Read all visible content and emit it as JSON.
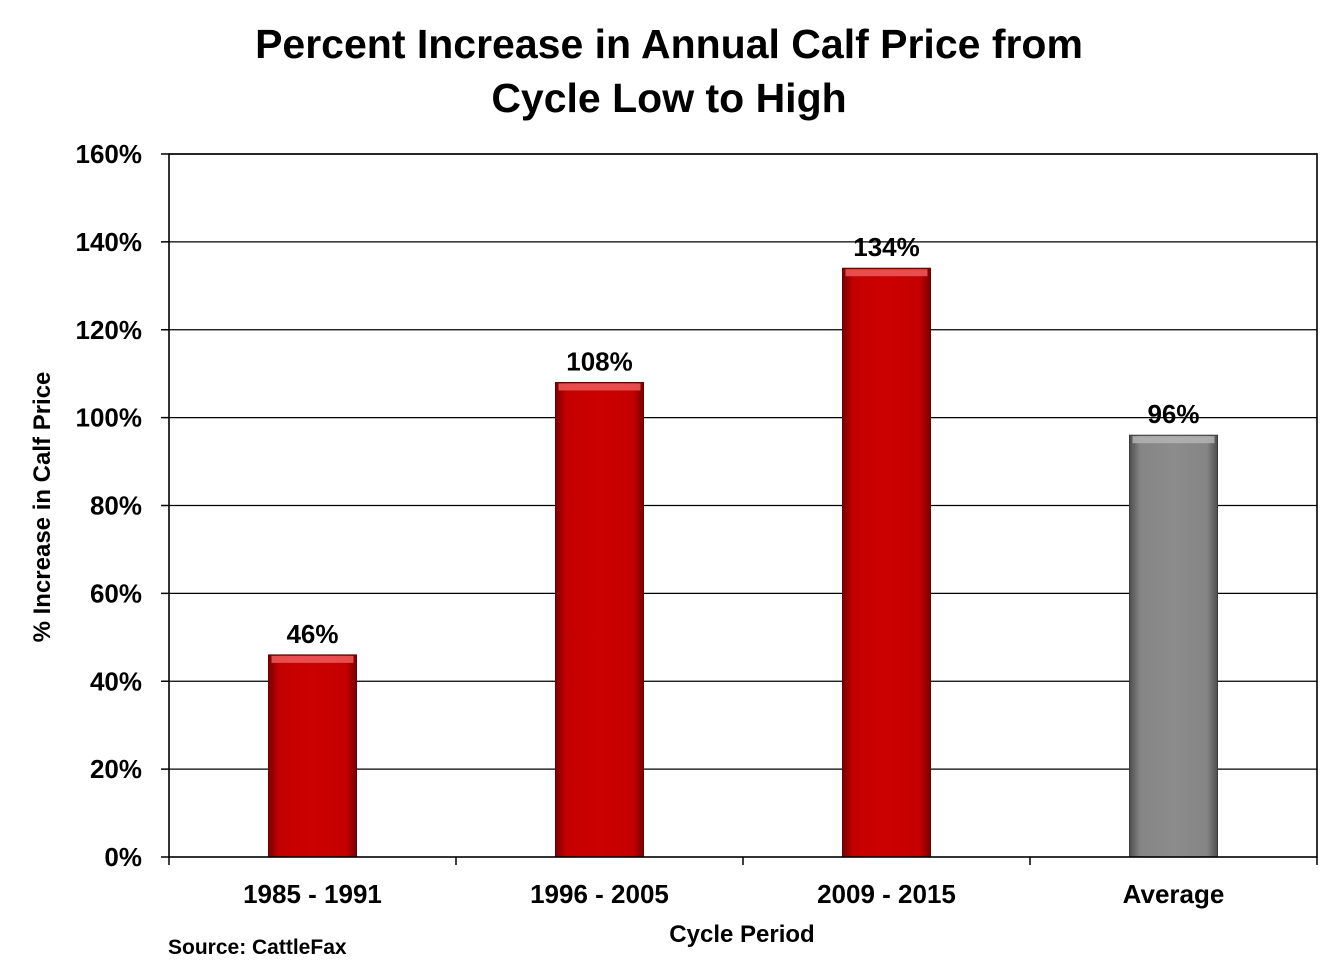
{
  "chart_data": {
    "type": "bar",
    "title_lines": [
      "Percent Increase in Annual Calf Price from",
      "Cycle Low to High"
    ],
    "xlabel": "Cycle Period",
    "ylabel": "% Increase in Calf Price",
    "categories": [
      "1985 - 1991",
      "1996 - 2005",
      "2009 - 2015",
      "Average"
    ],
    "values": [
      46,
      108,
      134,
      96
    ],
    "data_labels": [
      "46%",
      "108%",
      "134%",
      "96%"
    ],
    "ylim": [
      0,
      160
    ],
    "yticks": [
      0,
      20,
      40,
      60,
      80,
      100,
      120,
      140,
      160
    ],
    "ytick_labels": [
      "0%",
      "20%",
      "40%",
      "60%",
      "80%",
      "100%",
      "120%",
      "140%",
      "160%"
    ],
    "bar_colors": [
      "#cc0000",
      "#cc0000",
      "#cc0000",
      "#8a8a8a"
    ],
    "grid": true,
    "source": "Source: CattleFax"
  }
}
